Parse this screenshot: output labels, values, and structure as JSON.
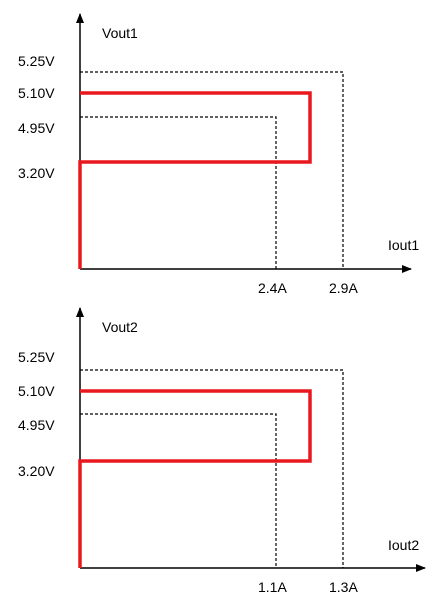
{
  "colors": {
    "axis": "#000000",
    "limit_line": "#000000",
    "characteristic": "#e8181e"
  },
  "plots": [
    {
      "y_axis_label": "Vout1",
      "x_axis_label": "Iout1",
      "y_ticks": [
        "5.25V",
        "5.10V",
        "4.95V",
        "3.20V"
      ],
      "x_ticks": [
        "2.4A",
        "2.9A"
      ]
    },
    {
      "y_axis_label": "Vout2",
      "x_axis_label": "Iout2",
      "y_ticks": [
        "5.25V",
        "5.10V",
        "4.95V",
        "3.20V"
      ],
      "x_ticks": [
        "1.1A",
        "1.3A"
      ]
    }
  ]
}
